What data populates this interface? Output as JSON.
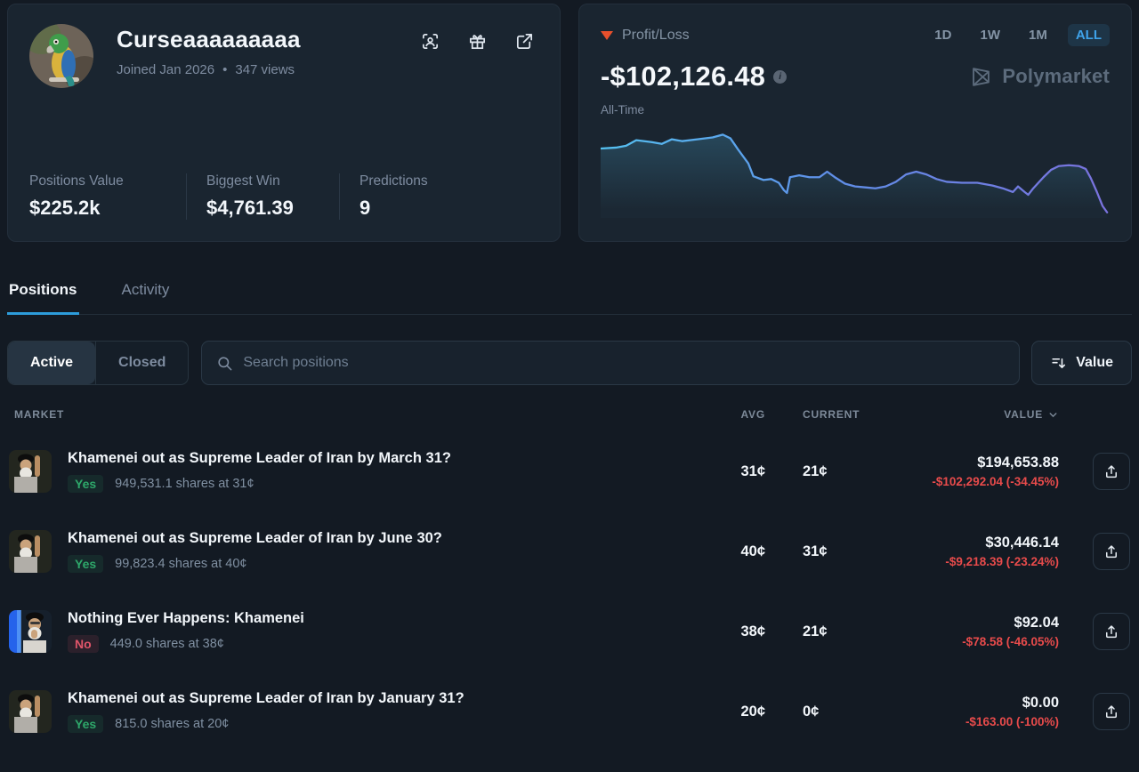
{
  "profile": {
    "username": "Curseaaaaaaaaa",
    "joined": "Joined Jan 2026",
    "separator": "•",
    "views": "347 views",
    "header_icons": [
      "face-scan-icon",
      "gift-icon",
      "external-link-icon"
    ],
    "stats": [
      {
        "label": "Positions Value",
        "value": "$225.2k"
      },
      {
        "label": "Biggest Win",
        "value": "$4,761.39"
      },
      {
        "label": "Predictions",
        "value": "9"
      }
    ]
  },
  "pnl": {
    "label": "Profit/Loss",
    "value": "-$102,126.48",
    "period_label": "All-Time",
    "ranges": [
      {
        "label": "1D",
        "active": false
      },
      {
        "label": "1W",
        "active": false
      },
      {
        "label": "1M",
        "active": false
      },
      {
        "label": "ALL",
        "active": true
      }
    ],
    "brand": "Polymarket"
  },
  "chart_data": {
    "type": "line",
    "title": "Profit/Loss sparkline (All-Time)",
    "xlabel": "time",
    "ylabel": "profit/loss (unlabeled axis)",
    "legend": "none",
    "grid": false,
    "end_value": "-$102,126.48",
    "line_gradient": [
      "#55c1f0",
      "#7a72dd"
    ],
    "series": [
      {
        "name": "Profit/Loss",
        "points_xy_pct_top_origin": [
          [
            0,
            25
          ],
          [
            3,
            24
          ],
          [
            5,
            22
          ],
          [
            7,
            16
          ],
          [
            10,
            18
          ],
          [
            12,
            20
          ],
          [
            14,
            15
          ],
          [
            16,
            17
          ],
          [
            19,
            15
          ],
          [
            22,
            13
          ],
          [
            24,
            10
          ],
          [
            25.5,
            14
          ],
          [
            27,
            26
          ],
          [
            29,
            41
          ],
          [
            30,
            55
          ],
          [
            32,
            59
          ],
          [
            33.5,
            58
          ],
          [
            35,
            62
          ],
          [
            36,
            70
          ],
          [
            36.6,
            73
          ],
          [
            37.2,
            56
          ],
          [
            39,
            54
          ],
          [
            41,
            56
          ],
          [
            43,
            56
          ],
          [
            44.5,
            50
          ],
          [
            46,
            56
          ],
          [
            48,
            63
          ],
          [
            50,
            66
          ],
          [
            52,
            67
          ],
          [
            54,
            68
          ],
          [
            56,
            66
          ],
          [
            58,
            61
          ],
          [
            60,
            53
          ],
          [
            62,
            50
          ],
          [
            64,
            53
          ],
          [
            66,
            58
          ],
          [
            68,
            61
          ],
          [
            71,
            62
          ],
          [
            74,
            62
          ],
          [
            77,
            65
          ],
          [
            79,
            68
          ],
          [
            81,
            72
          ],
          [
            82,
            66
          ],
          [
            83.3,
            72
          ],
          [
            84,
            75
          ],
          [
            85,
            68
          ],
          [
            87,
            56
          ],
          [
            88.5,
            48
          ],
          [
            90,
            44
          ],
          [
            92,
            43
          ],
          [
            94,
            44
          ],
          [
            95.3,
            47
          ],
          [
            96.3,
            57
          ],
          [
            97.5,
            72
          ],
          [
            98.6,
            87
          ],
          [
            99.5,
            94
          ]
        ]
      }
    ]
  },
  "tabs": [
    {
      "label": "Positions",
      "active": true
    },
    {
      "label": "Activity",
      "active": false
    }
  ],
  "filters": {
    "segments": [
      {
        "label": "Active",
        "active": true
      },
      {
        "label": "Closed",
        "active": false
      }
    ],
    "search_placeholder": "Search positions",
    "sort_label": "Value"
  },
  "table": {
    "headers": {
      "market": "MARKET",
      "avg": "AVG",
      "current": "CURRENT",
      "value": "VALUE"
    },
    "rows": [
      {
        "title": "Khamenei out as Supreme Leader of Iran by March 31?",
        "side": "Yes",
        "shares": "949,531.1 shares at 31¢",
        "avg": "31¢",
        "current": "21¢",
        "value": "$194,653.88",
        "pnl": "-$102,292.04 (-34.45%)",
        "thumb": "khamenei-salute"
      },
      {
        "title": "Khamenei out as Supreme Leader of Iran by June 30?",
        "side": "Yes",
        "shares": "99,823.4 shares at 40¢",
        "avg": "40¢",
        "current": "31¢",
        "value": "$30,446.14",
        "pnl": "-$9,218.39 (-23.24%)",
        "thumb": "khamenei-salute"
      },
      {
        "title": "Nothing Ever Happens: Khamenei",
        "side": "No",
        "shares": "449.0 shares at 38¢",
        "avg": "38¢",
        "current": "21¢",
        "value": "$92.04",
        "pnl": "-$78.58 (-46.05%)",
        "thumb": "khamenei-flag"
      },
      {
        "title": "Khamenei out as Supreme Leader of Iran by January 31?",
        "side": "Yes",
        "shares": "815.0 shares at 20¢",
        "avg": "20¢",
        "current": "0¢",
        "value": "$0.00",
        "pnl": "-$163.00 (-100%)",
        "thumb": "khamenei-salute"
      }
    ]
  },
  "colors": {
    "accent_blue": "#3fa2e9",
    "tab_underline_blue": "#2d9cdb",
    "positive_green": "#2ea86a",
    "negative_red": "#e84b4b",
    "loss_triangle": "#e8502c",
    "card_bg": "#1a2530",
    "page_bg": "#131a23"
  }
}
